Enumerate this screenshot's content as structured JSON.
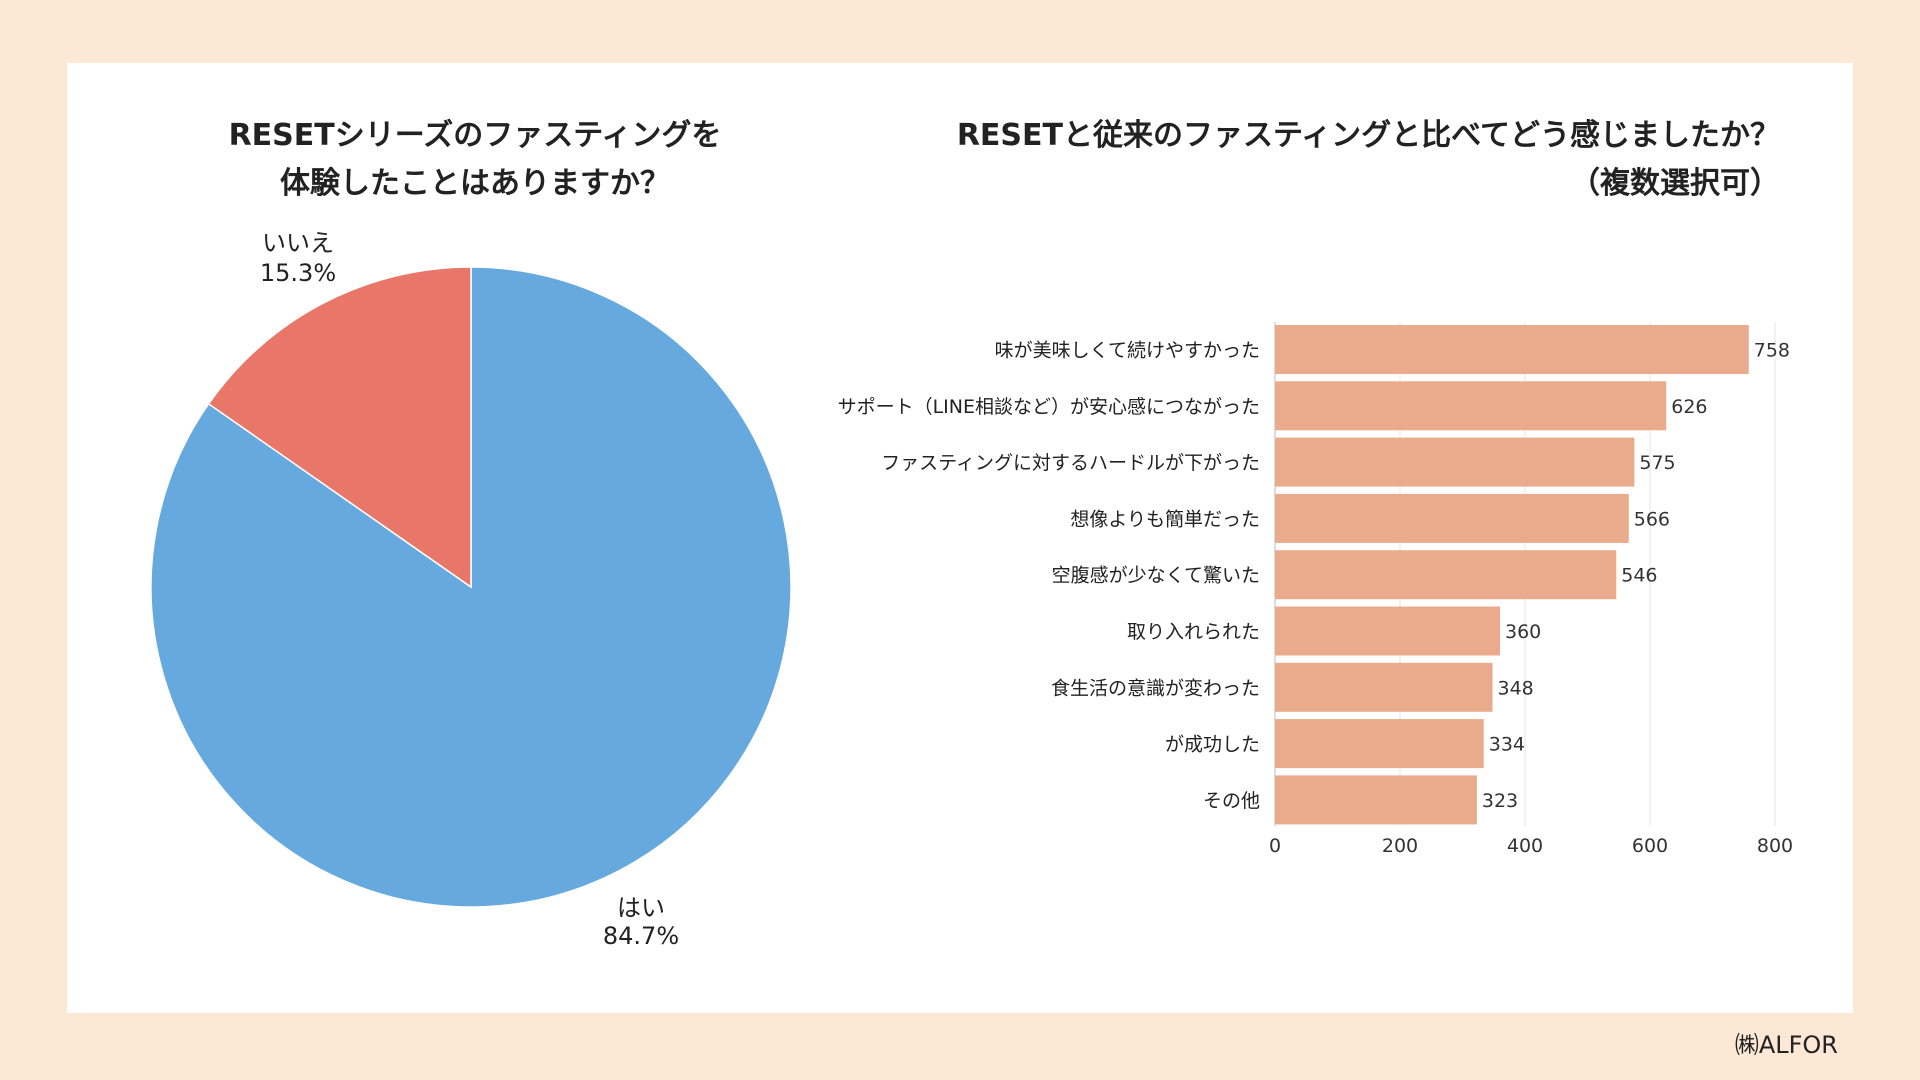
{
  "footer": "㈱ALFOR",
  "chart_data": [
    {
      "type": "pie",
      "title_lines": [
        "RESETシリーズのファスティングを",
        "体験したことはありますか？"
      ],
      "slices": [
        {
          "label": "はい",
          "percent_label": "84.7%",
          "value": 84.7,
          "color": "#66a9de"
        },
        {
          "label": "いいえ",
          "percent_label": "15.3%",
          "value": 15.3,
          "color": "#e97769"
        }
      ]
    },
    {
      "type": "bar",
      "orientation": "horizontal",
      "title_lines": [
        "RESETと従来のファスティングと比べてどう感じましたか？",
        "（複数選択可）"
      ],
      "categories": [
        "味が美味しくて続けやすかった",
        "サポート（LINE相談など）が安心感につながった",
        "ファスティングに対するハードルが下がった",
        "想像よりも簡単だった",
        "空腹感が少なくて驚いた",
        "取り入れられた",
        "食生活の意識が変わった",
        "が成功した",
        "その他"
      ],
      "values": [
        758,
        626,
        575,
        566,
        546,
        360,
        348,
        334,
        323
      ],
      "xlim": [
        0,
        800
      ],
      "xticks": [
        0,
        200,
        400,
        600,
        800
      ],
      "bar_color": "#eaab8c",
      "grid": true
    }
  ]
}
